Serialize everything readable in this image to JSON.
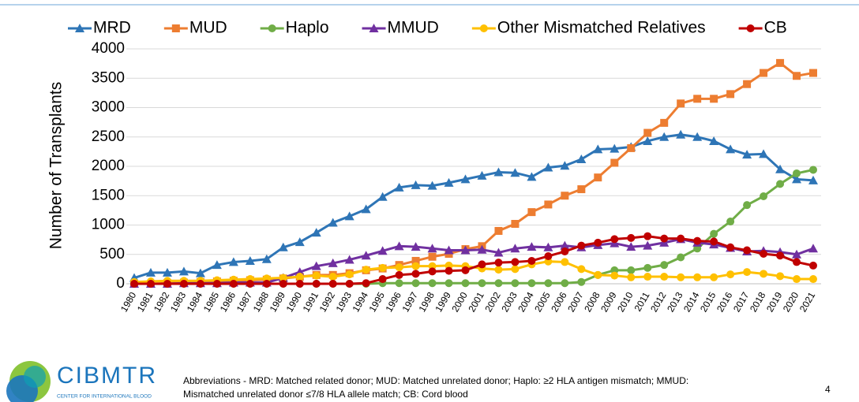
{
  "chart_data": {
    "type": "line",
    "y_label": "Number of Transplants",
    "categories": [
      "1980",
      "1981",
      "1982",
      "1983",
      "1984",
      "1985",
      "1986",
      "1987",
      "1988",
      "1989",
      "1990",
      "1991",
      "1992",
      "1993",
      "1994",
      "1995",
      "1996",
      "1997",
      "1998",
      "1999",
      "2000",
      "2001",
      "2002",
      "2003",
      "2004",
      "2005",
      "2006",
      "2007",
      "2008",
      "2009",
      "2010",
      "2011",
      "2012",
      "2013",
      "2014",
      "2015",
      "2016",
      "2017",
      "2018",
      "2019",
      "2020",
      "2021"
    ],
    "series": [
      {
        "name": "MRD",
        "color": "#2e75b6",
        "marker": "triangle",
        "values": [
          100,
          190,
          190,
          210,
          180,
          320,
          370,
          390,
          420,
          620,
          710,
          870,
          1040,
          1150,
          1270,
          1480,
          1640,
          1680,
          1670,
          1720,
          1780,
          1840,
          1900,
          1890,
          1820,
          1980,
          2010,
          2120,
          2290,
          2300,
          2330,
          2430,
          2500,
          2540,
          2500,
          2430,
          2290,
          2200,
          2210,
          1950,
          1780,
          1760
        ]
      },
      {
        "name": "MUD",
        "color": "#ed7d31",
        "marker": "square",
        "values": [
          0,
          0,
          10,
          20,
          30,
          40,
          50,
          60,
          70,
          90,
          120,
          150,
          150,
          180,
          230,
          260,
          320,
          390,
          460,
          510,
          590,
          640,
          900,
          1020,
          1220,
          1350,
          1500,
          1610,
          1810,
          2060,
          2310,
          2570,
          2740,
          3070,
          3150,
          3150,
          3230,
          3400,
          3590,
          3760,
          3540,
          3590
        ]
      },
      {
        "name": "Haplo",
        "color": "#70ad47",
        "marker": "circle",
        "values": [
          0,
          0,
          0,
          0,
          0,
          0,
          0,
          0,
          0,
          0,
          0,
          0,
          0,
          0,
          0,
          10,
          10,
          10,
          10,
          10,
          10,
          10,
          10,
          10,
          10,
          10,
          10,
          30,
          150,
          230,
          230,
          270,
          320,
          450,
          600,
          850,
          1060,
          1340,
          1490,
          1700,
          1880,
          1940
        ]
      },
      {
        "name": "MMUD",
        "color": "#7030a0",
        "marker": "triangle",
        "values": [
          0,
          0,
          0,
          10,
          10,
          10,
          20,
          20,
          20,
          100,
          200,
          300,
          350,
          410,
          480,
          560,
          640,
          630,
          600,
          570,
          570,
          580,
          530,
          600,
          630,
          620,
          650,
          620,
          660,
          690,
          630,
          650,
          700,
          760,
          700,
          670,
          610,
          550,
          560,
          540,
          500,
          600
        ]
      },
      {
        "name": "Other Mismatched Relatives",
        "color": "#ffc000",
        "marker": "circle",
        "values": [
          30,
          40,
          50,
          50,
          50,
          60,
          70,
          80,
          90,
          100,
          120,
          140,
          120,
          160,
          240,
          270,
          280,
          300,
          300,
          310,
          300,
          260,
          240,
          250,
          330,
          380,
          370,
          250,
          150,
          140,
          110,
          120,
          120,
          110,
          110,
          110,
          160,
          200,
          170,
          130,
          80,
          80
        ]
      },
      {
        "name": "CB",
        "color": "#c00000",
        "marker": "circle",
        "values": [
          0,
          0,
          0,
          0,
          0,
          0,
          0,
          0,
          0,
          0,
          0,
          0,
          0,
          0,
          10,
          80,
          150,
          170,
          210,
          220,
          230,
          330,
          360,
          370,
          390,
          470,
          550,
          650,
          700,
          760,
          780,
          810,
          770,
          770,
          730,
          720,
          620,
          570,
          510,
          480,
          370,
          310
        ]
      }
    ],
    "ylim": [
      0,
      4000
    ],
    "yticks": [
      0,
      500,
      1000,
      1500,
      2000,
      2500,
      3000,
      3500,
      4000
    ],
    "grid": true,
    "legend": "top"
  },
  "logo": {
    "name": "CIBMTR",
    "tagline": "CENTER FOR INTERNATIONAL BLOOD"
  },
  "footnote": [
    "Abbreviations - MRD: Matched related donor; MUD: Matched unrelated donor; Haplo: ≥2 HLA antigen mismatch; MMUD:",
    "Mismatched unrelated donor ≤7/8 HLA allele match; CB: Cord blood"
  ],
  "page_number": "4"
}
